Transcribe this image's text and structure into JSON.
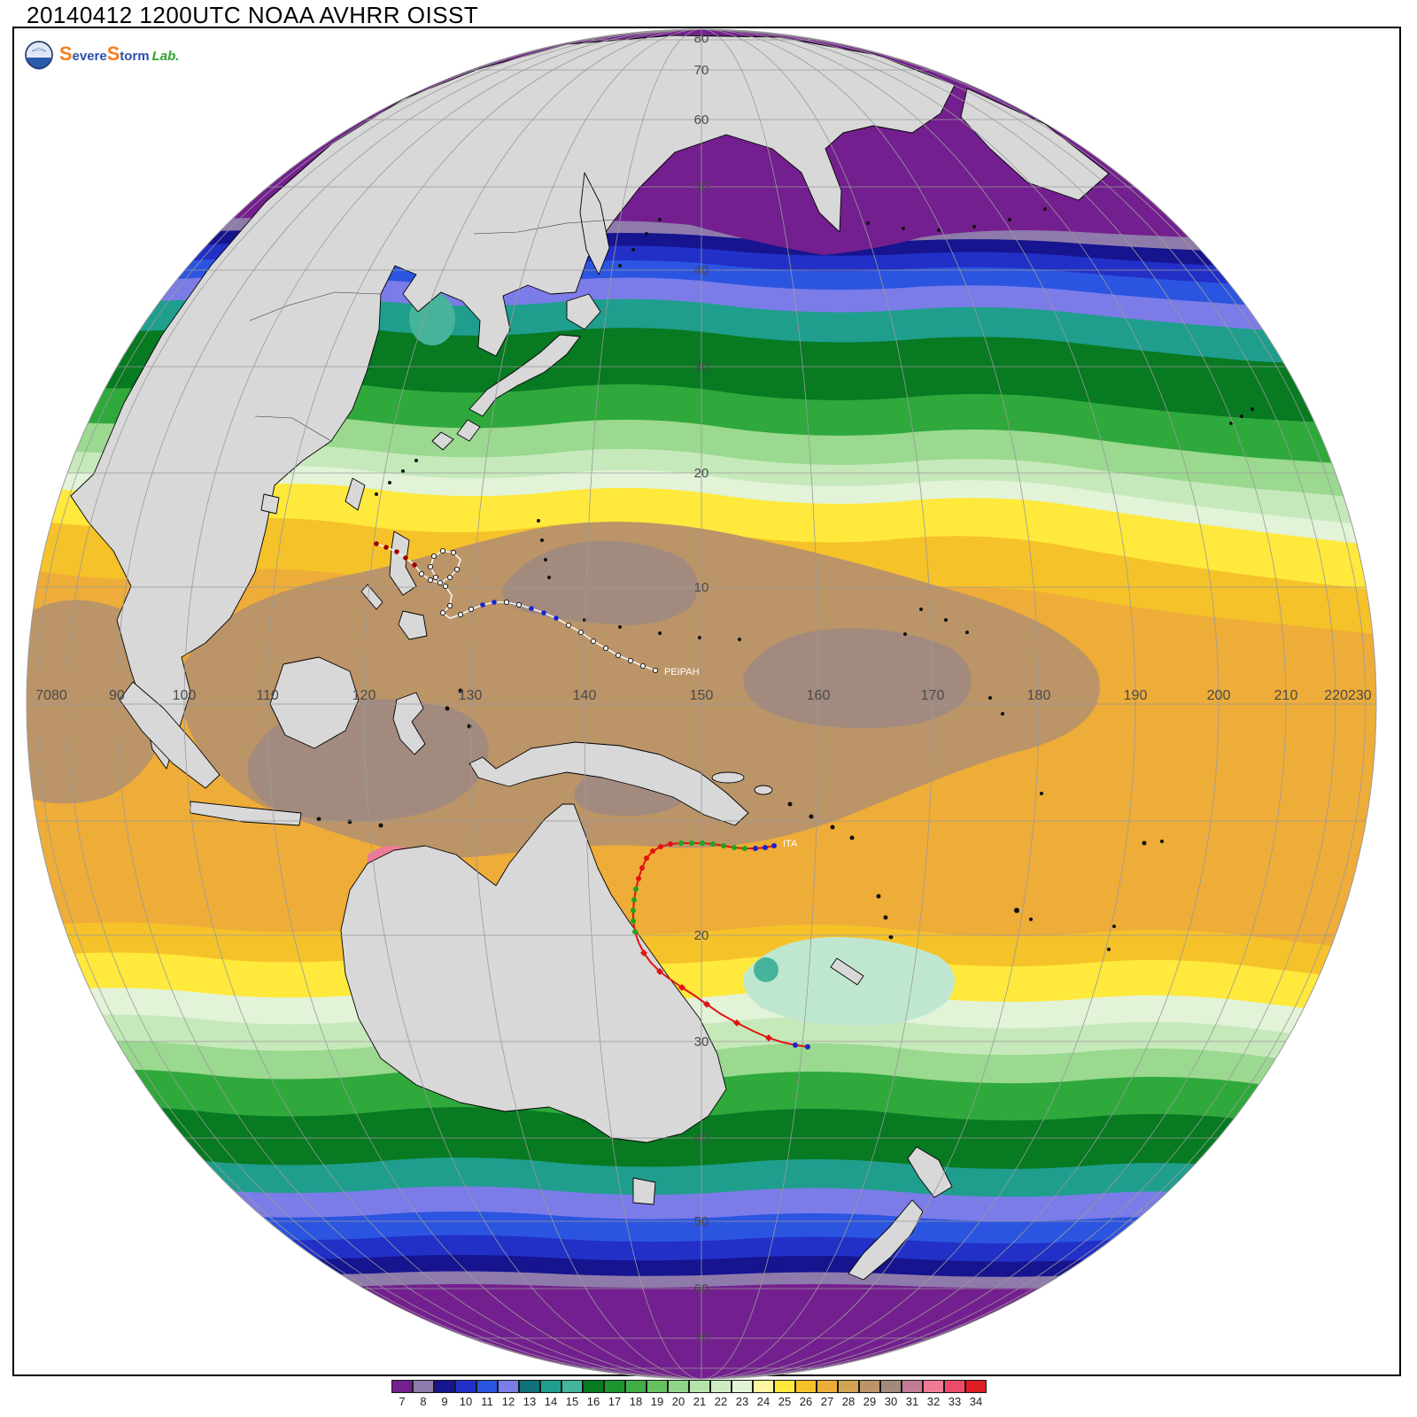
{
  "title": "20140412 1200UTC NOAA AVHRR OISST",
  "logo": {
    "word1": "Severe",
    "word2": "Storm",
    "word3": "Lab."
  },
  "globe": {
    "lon_labels": [
      "7080",
      "90",
      "100",
      "110",
      "120",
      "130",
      "140",
      "150",
      "160",
      "170",
      "180",
      "190",
      "200",
      "210",
      "220230"
    ],
    "lat_labels_north": [
      "80",
      "70",
      "60",
      "50",
      "40",
      "30",
      "20",
      "10"
    ],
    "lat_labels_south": [
      "20",
      "30",
      "40",
      "50",
      "60",
      "70"
    ],
    "storm_tracks": [
      {
        "name": "PEIPAH"
      },
      {
        "name": "ITA"
      }
    ]
  },
  "colorbar": {
    "labels": [
      "7",
      "8",
      "9",
      "10",
      "11",
      "12",
      "13",
      "14",
      "15",
      "16",
      "17",
      "18",
      "19",
      "20",
      "21",
      "22",
      "23",
      "24",
      "25",
      "26",
      "27",
      "28",
      "29",
      "30",
      "31",
      "32",
      "33",
      "34"
    ],
    "colors": [
      "#741f8f",
      "#8e7bab",
      "#16148f",
      "#2230c8",
      "#2b55e0",
      "#7b7ce8",
      "#11707a",
      "#1f9e8e",
      "#45b49a",
      "#077a22",
      "#1d9430",
      "#3fae46",
      "#66c25e",
      "#8fd489",
      "#b5e3aa",
      "#cdecc2",
      "#e2f3d8",
      "#fff7a0",
      "#ffe93c",
      "#f6c229",
      "#eeac38",
      "#d2a353",
      "#bb9468",
      "#a28b7e",
      "#c17b93",
      "#ef7a96",
      "#ee4a6a",
      "#dd1c24"
    ]
  },
  "map_colors": {
    "ocean_warm_base": "#eeac38",
    "land": "#d8d8d8",
    "polar": "#741f8f",
    "graticule": "#9a9a9a"
  }
}
